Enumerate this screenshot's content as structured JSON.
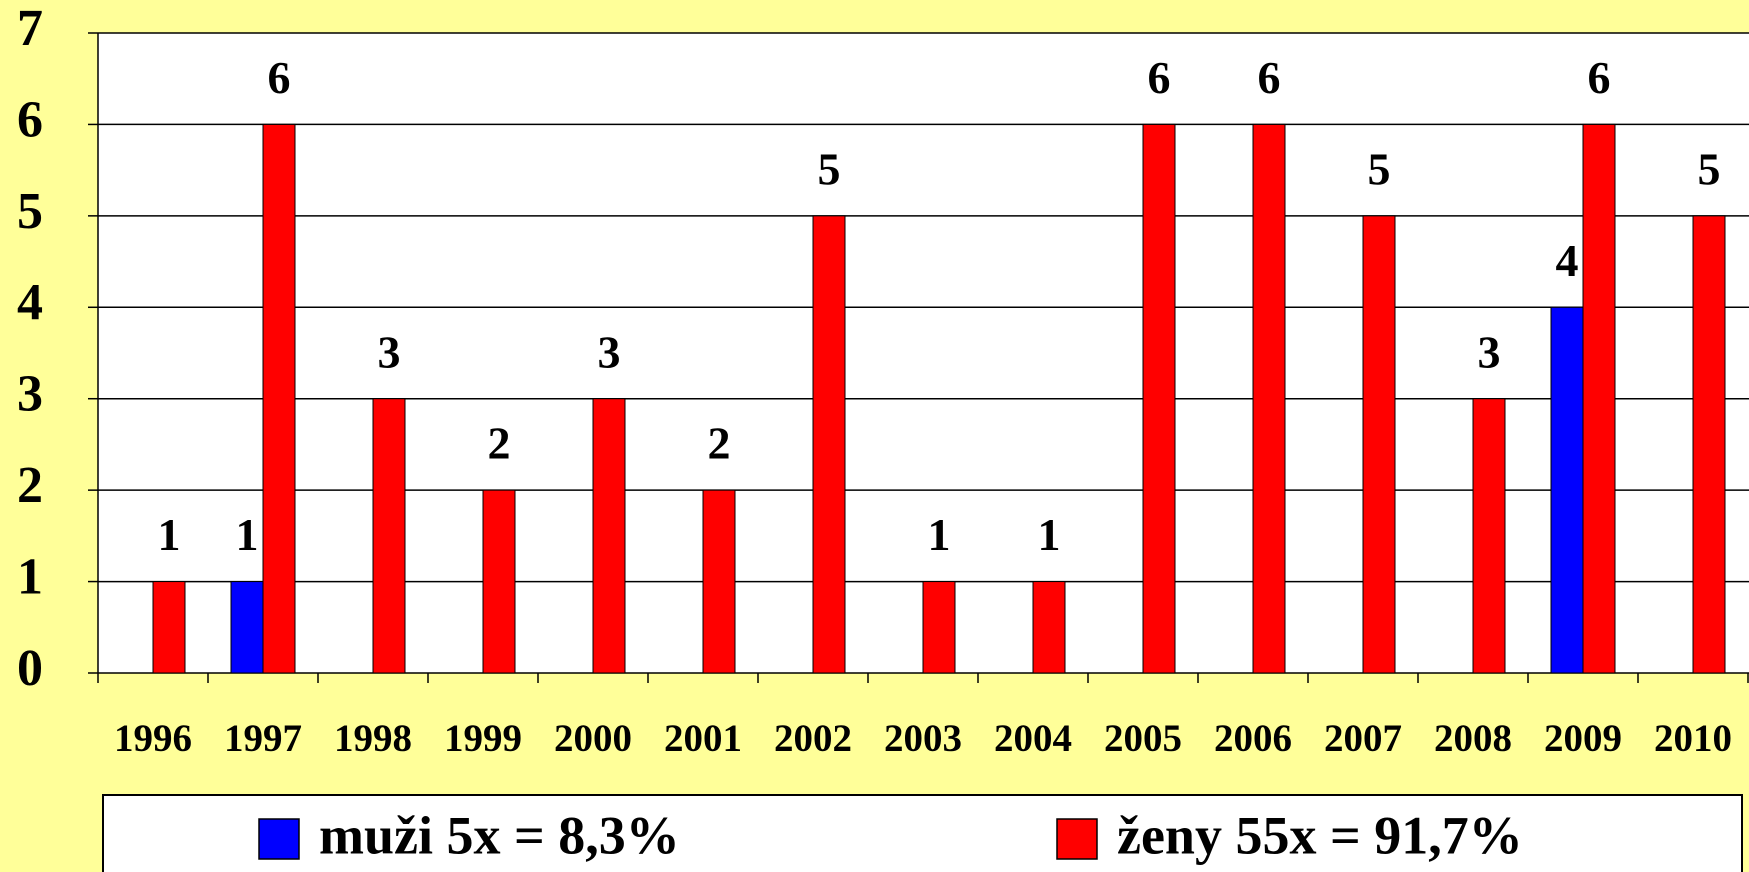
{
  "chart_data": {
    "type": "bar",
    "categories": [
      "1996",
      "1997",
      "1998",
      "1999",
      "2000",
      "2001",
      "2002",
      "2003",
      "2004",
      "2005",
      "2006",
      "2007",
      "2008",
      "2009",
      "2010"
    ],
    "series": [
      {
        "name": "muži 5x = 8,3%",
        "color": "#0000ff",
        "values": [
          null,
          1,
          null,
          null,
          null,
          null,
          null,
          null,
          null,
          null,
          null,
          null,
          null,
          4,
          null
        ]
      },
      {
        "name": "ženy 55x = 91,7%",
        "color": "#ff0000",
        "values": [
          1,
          6,
          3,
          2,
          3,
          2,
          5,
          1,
          1,
          6,
          6,
          5,
          3,
          6,
          5
        ]
      }
    ],
    "ylim": [
      0,
      7
    ],
    "yticks": [
      0,
      1,
      2,
      3,
      4,
      5,
      6,
      7
    ],
    "grid": true,
    "legend": "bottom"
  }
}
